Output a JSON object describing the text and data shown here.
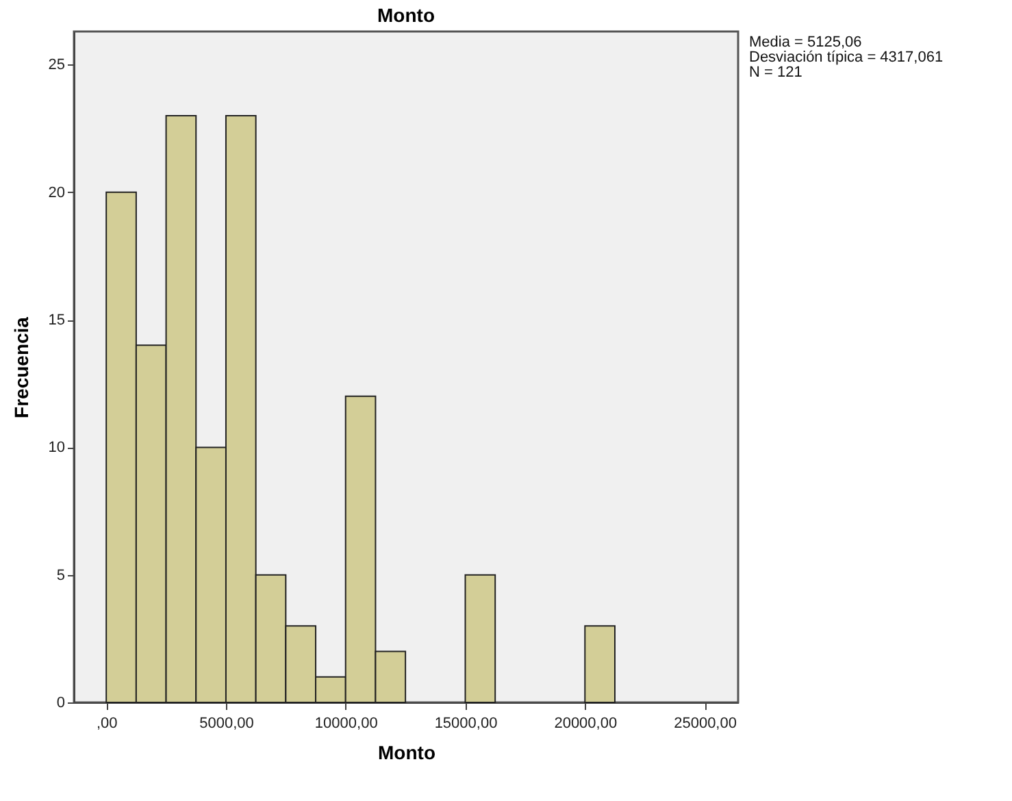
{
  "chart_data": {
    "type": "histogram",
    "title": "Monto",
    "xlabel": "Monto",
    "ylabel": "Frecuencia",
    "bins": [
      0,
      1250,
      2500,
      3750,
      5000,
      6250,
      7500,
      8750,
      10000,
      11250,
      12500,
      13750,
      15000,
      16250,
      17500,
      18750,
      20000,
      21250
    ],
    "values": [
      20,
      14,
      23,
      10,
      23,
      5,
      3,
      1,
      12,
      2,
      0,
      0,
      5,
      0,
      0,
      0,
      3
    ],
    "color": "#d3ce97",
    "xlim": [
      -1350,
      26400
    ],
    "ylim": [
      0,
      26.3
    ],
    "xticks": [
      {
        "value": 0,
        "label": ",00"
      },
      {
        "value": 5000,
        "label": "5000,00"
      },
      {
        "value": 10000,
        "label": "10000,00"
      },
      {
        "value": 15000,
        "label": "15000,00"
      },
      {
        "value": 20000,
        "label": "20000,00"
      },
      {
        "value": 25000,
        "label": "25000,00"
      }
    ],
    "yticks": [
      0,
      5,
      10,
      15,
      20,
      25
    ],
    "annotations": [
      "Media = 5125,06",
      "Desviación típica = 4317,061",
      "N = 121"
    ]
  }
}
